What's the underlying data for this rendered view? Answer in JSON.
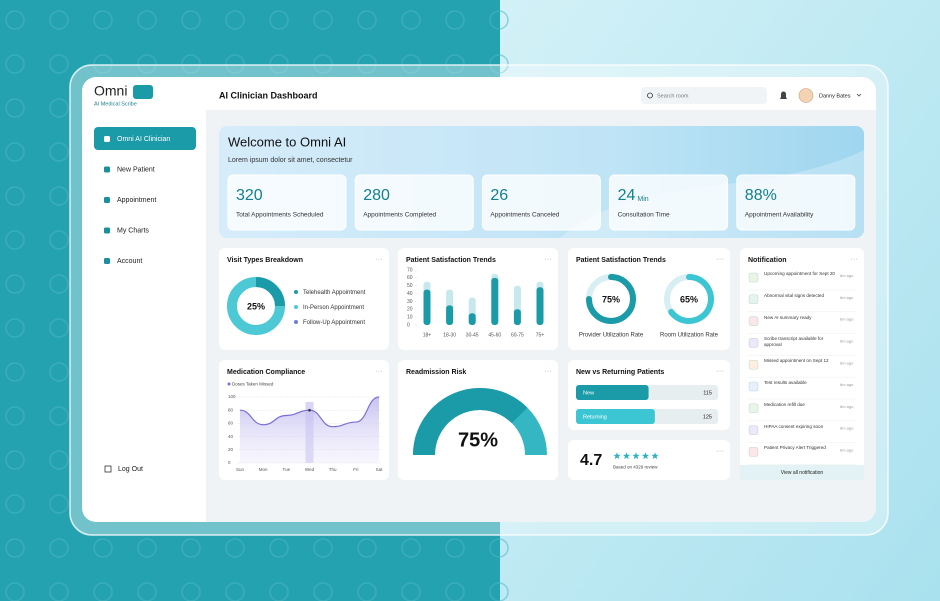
{
  "sidebar": {
    "logo": "Omni",
    "tagline": "AI Medical Scribe",
    "menu": [
      "Omni AI Clinician",
      "New Patient",
      "Appointment",
      "My Charts",
      "Account"
    ],
    "logout": "Log Out"
  },
  "header": {
    "title": "AI Clinician Dashboard",
    "search": "Search room",
    "user": "Danny Bates"
  },
  "welcome": {
    "title": "Welcome to Omni AI",
    "subtitle": "Lorem ipsum dolor sit amet, consectetur",
    "stats": [
      {
        "value": "320",
        "label": "Total Appointments Scheduled"
      },
      {
        "value": "280",
        "label": "Appointments Completed"
      },
      {
        "value": "26",
        "label": "Appointments Canceled"
      },
      {
        "value": "24",
        "unit": "Min",
        "label": "Consultation Time"
      },
      {
        "value": "88%",
        "label": "Appointment Availability"
      }
    ]
  },
  "visit_types": {
    "title": "Visit Types Breakdown",
    "percent": {
      "value": 25,
      "label": "25%"
    },
    "legend": [
      {
        "name": "Telehealth Appointment",
        "color": "#1b9aa8"
      },
      {
        "name": "In-Person Appointment",
        "color": "#4cc9d5"
      },
      {
        "name": "Follow-Up Appointment",
        "color": "#6d7fd8"
      }
    ]
  },
  "satisfaction": {
    "title": "Patient Satisfaction Trends",
    "categories": [
      "18+",
      "18-30",
      "30-45",
      "45-60",
      "60-75",
      "75+"
    ],
    "ylim": [
      0,
      70
    ],
    "yticks": [
      0,
      10,
      20,
      30,
      40,
      50,
      60,
      70
    ],
    "series": [
      {
        "color": "#c7e8ed",
        "values": [
          55,
          45,
          35,
          65,
          50,
          55
        ]
      },
      {
        "color": "#1b9aa8",
        "values": [
          45,
          25,
          15,
          60,
          20,
          48
        ]
      }
    ]
  },
  "utilization": {
    "title": "Patient Satisfaction Trends",
    "gauges": [
      {
        "value": 75,
        "label": "75%",
        "caption": "Provider Utilization Rate",
        "color": "#1b9aa8"
      },
      {
        "value": 65,
        "label": "65%",
        "caption": "Room Utilization Rate",
        "color": "#3cc6d3"
      }
    ]
  },
  "notifications": {
    "title": "Notification",
    "items": [
      {
        "text": "Upcoming appointment for Sept 20",
        "time": "6m ago"
      },
      {
        "text": "Abnormal vital signs detected",
        "time": "6m ago"
      },
      {
        "text": "New AI summary ready",
        "time": "6m ago"
      },
      {
        "text": "Scribe transcript available for approval",
        "time": "6m ago"
      },
      {
        "text": "Missed appointment on Sept 12",
        "time": "6m ago"
      },
      {
        "text": "Test results available",
        "time": "6m ago"
      },
      {
        "text": "Medication refill due",
        "time": "6m ago"
      },
      {
        "text": "HIPAA consent expiring soon",
        "time": "6m ago"
      },
      {
        "text": "Patient Privacy Alert Triggered",
        "time": "6m ago"
      }
    ],
    "footer": "View all notification"
  },
  "medication": {
    "title": "Medication Compliance",
    "legend": "Doses Taken Missed",
    "categories": [
      "Sun",
      "Mon",
      "Tue",
      "Wed",
      "Thu",
      "Fri",
      "Sat"
    ],
    "values": [
      80,
      58,
      72,
      80,
      55,
      62,
      100
    ],
    "ylim": [
      0,
      100
    ],
    "yticks": [
      0,
      20,
      40,
      60,
      80,
      100
    ],
    "color": "#7b6fd6"
  },
  "readmission": {
    "title": "Readmission Risk",
    "value": 75,
    "label": "75%"
  },
  "patients": {
    "title": "New vs Returning Patients",
    "xlim": [
      0,
      225
    ],
    "rows": [
      {
        "name": "New",
        "value": 115,
        "color": "#1b9aa8"
      },
      {
        "name": "Returning",
        "value": 125,
        "color": "#3cc6d3"
      }
    ]
  },
  "rating": {
    "value": 4.7,
    "stars": 5,
    "caption": "Based on 4329 review"
  }
}
